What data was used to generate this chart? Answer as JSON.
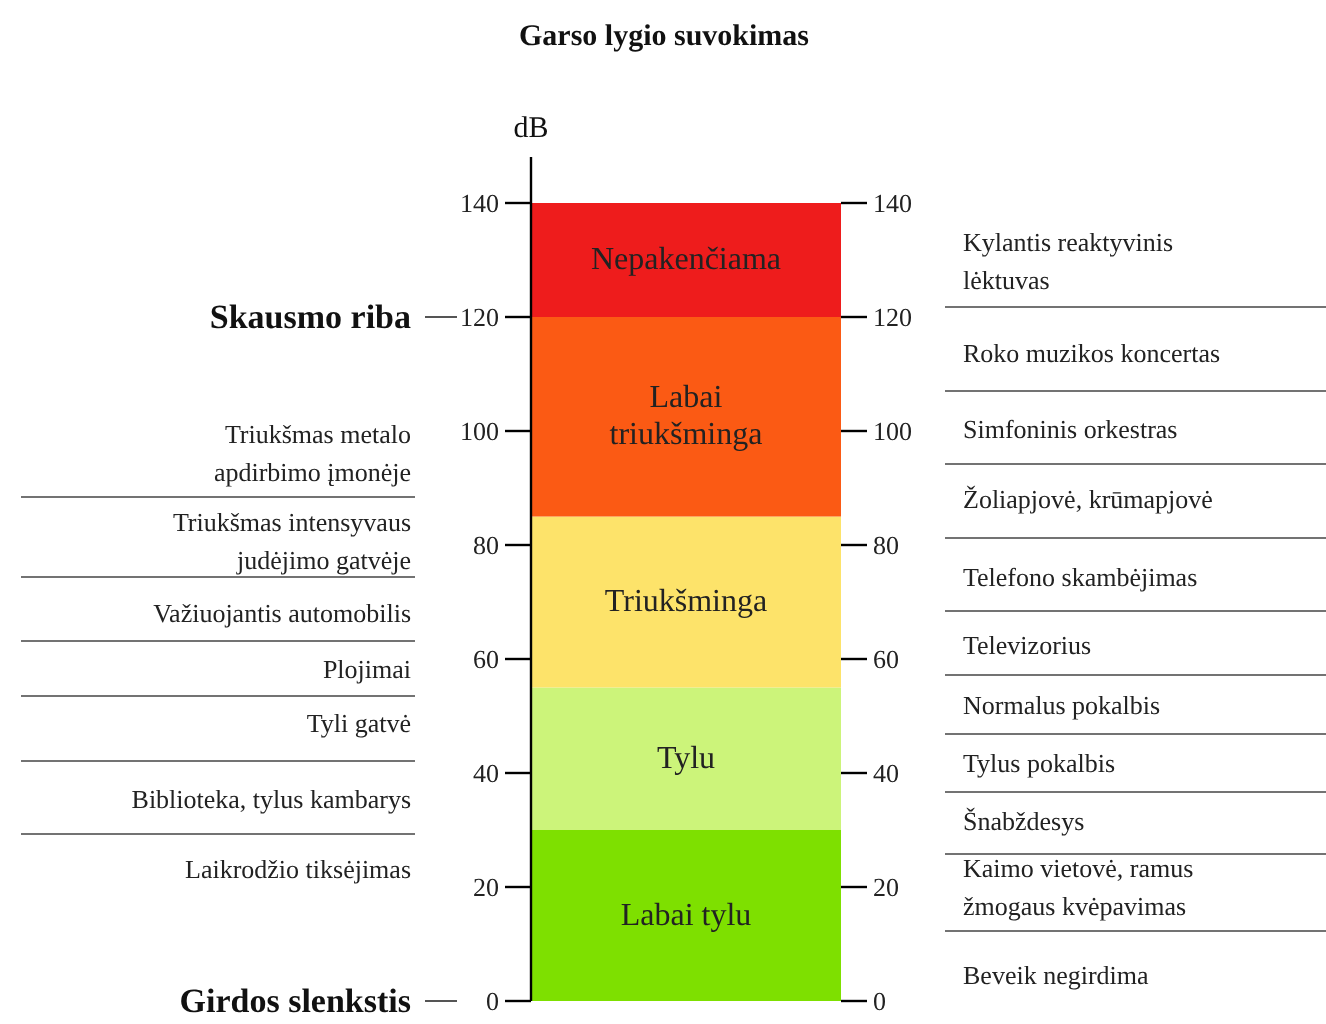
{
  "chart_data": {
    "type": "bar",
    "stacked": true,
    "title": "Garso lygio suvokimas",
    "ylabel": "dB",
    "categories": [
      null
    ],
    "series": [
      {
        "name": "Labai tylu",
        "color": "#7ee000",
        "values": [
          30
        ]
      },
      {
        "name": "Tylu",
        "color": "#ccf47a",
        "values": [
          25
        ]
      },
      {
        "name": "Triukšminga",
        "color": "#fde36a",
        "values": [
          30
        ]
      },
      {
        "name": "Labai\ntriukšminga",
        "color": "#fb5a14",
        "values": [
          35
        ]
      },
      {
        "name": "Nepakenčiama",
        "color": "#ee1c1c",
        "values": [
          20
        ]
      }
    ],
    "ylim": [
      0,
      140
    ],
    "yticks": [
      0,
      20,
      40,
      60,
      80,
      100,
      120,
      140
    ],
    "y2lim": [
      0,
      140
    ],
    "y2ticks": [
      0,
      20,
      40,
      60,
      80,
      100,
      120,
      140
    ],
    "ref_lines": [
      {
        "axis": "y",
        "value": 120,
        "label": "Skausmo riba"
      },
      {
        "axis": "y",
        "value": 0,
        "label": "Girdos slenkstis"
      }
    ],
    "annotations": [
      "Triukšmas metalo\napdirbimo įmonėje",
      "Triukšmas intensyvaus\njudėjimo gatvėje",
      "Važiuojantis automobilis",
      "Plojimai",
      "Tyli gatvė",
      "Biblioteka, tylus kambarys",
      "Laikrodžio tiksėjimas",
      "Kylantis reaktyvinis\nlėktuvas",
      "Roko muzikos koncertas",
      "Simfoninis orkestras",
      "Žoliapjovė, krūmapjovė",
      "Telefono skambėjimas",
      "Televizorius",
      "Normalus pokalbis",
      "Tylus pokalbis",
      "Šnabždesys",
      "Kaimo vietovė, ramus\nžmogaus kvėpavimas",
      "Beveik negirdima"
    ]
  }
}
